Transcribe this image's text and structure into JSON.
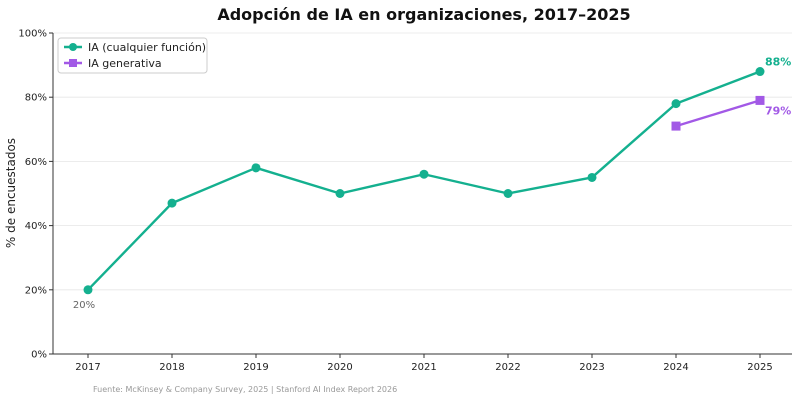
{
  "chart_data": {
    "type": "line",
    "title": "Adopción de IA en organizaciones, 2017–2025",
    "xlabel": "",
    "ylabel": "% de encuestados",
    "x": [
      2017,
      2018,
      2019,
      2020,
      2021,
      2022,
      2023,
      2024,
      2025
    ],
    "ylim": [
      0,
      100
    ],
    "yticks": [
      0,
      20,
      40,
      60,
      80,
      100
    ],
    "ytick_labels": [
      "0%",
      "20%",
      "40%",
      "60%",
      "80%",
      "100%"
    ],
    "grid": "horizontal",
    "legend_position": "top-left",
    "series": [
      {
        "name": "IA (cualquier función)",
        "x": [
          2017,
          2018,
          2019,
          2020,
          2021,
          2022,
          2023,
          2024,
          2025
        ],
        "values": [
          20,
          47,
          58,
          50,
          56,
          50,
          55,
          78,
          88
        ],
        "color": "#14b08f",
        "marker": "circle"
      },
      {
        "name": "IA generativa",
        "x": [
          2024,
          2025
        ],
        "values": [
          71,
          79
        ],
        "color": "#a259e6",
        "marker": "square"
      }
    ],
    "annotations": [
      {
        "text": "88%",
        "series": 0,
        "x": 2025,
        "style": "bold"
      },
      {
        "text": "79%",
        "series": 1,
        "x": 2025,
        "style": "bold"
      },
      {
        "text": "20%",
        "series": 0,
        "x": 2017,
        "style": "normal"
      }
    ],
    "source": "Fuente: McKinsey & Company Survey, 2025 | Stanford AI Index Report 2026"
  }
}
